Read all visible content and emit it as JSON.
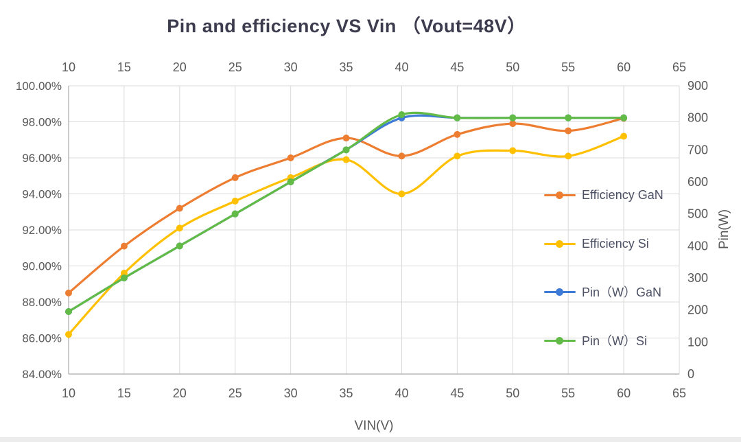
{
  "title": "Pin and efficiency VS Vin （Vout=48V）",
  "chart_data": {
    "type": "line",
    "title": "Pin and efficiency VS Vin （Vout=48V）",
    "x": [
      10,
      15,
      20,
      25,
      30,
      35,
      40,
      45,
      50,
      55,
      60
    ],
    "x_axis": {
      "label": "VIN(V)",
      "range": [
        10,
        65
      ],
      "ticks": [
        10,
        15,
        20,
        25,
        30,
        35,
        40,
        45,
        50,
        55,
        60,
        65
      ],
      "tick_labels_shown": "top and bottom"
    },
    "y_axis_left": {
      "label": "",
      "unit": "percent",
      "range": [
        84,
        100
      ],
      "ticks": [
        "100.00%",
        "98.00%",
        "96.00%",
        "94.00%",
        "92.00%",
        "90.00%",
        "88.00%",
        "86.00%",
        "84.00%"
      ]
    },
    "y_axis_right": {
      "label": "Pin(W)",
      "range": [
        0,
        900
      ],
      "ticks": [
        900,
        800,
        700,
        600,
        500,
        400,
        300,
        200,
        100,
        0
      ]
    },
    "grid": true,
    "legend_position": "inside-right",
    "series": [
      {
        "name": "Efficiency GaN",
        "axis": "left",
        "color": "#ED7D31",
        "marker": "circle",
        "values": [
          88.5,
          91.1,
          93.2,
          94.9,
          96.0,
          97.1,
          96.1,
          97.3,
          97.9,
          97.5,
          98.2
        ]
      },
      {
        "name": "Efficiency Si",
        "axis": "left",
        "color": "#FFC000",
        "marker": "circle",
        "values": [
          86.2,
          89.6,
          92.1,
          93.6,
          94.9,
          95.9,
          94.0,
          96.1,
          96.4,
          96.1,
          97.2
        ]
      },
      {
        "name": "Pin（W）GaN",
        "axis": "right",
        "color": "#3E7BD6",
        "marker": "circle",
        "values": [
          195,
          300,
          400,
          500,
          600,
          700,
          800,
          800,
          800,
          800,
          800
        ]
      },
      {
        "name": "Pin（W）Si",
        "axis": "right",
        "color": "#62BB46",
        "marker": "circle",
        "values": [
          195,
          300,
          400,
          500,
          600,
          700,
          810,
          800,
          800,
          800,
          800
        ]
      }
    ]
  },
  "legend_rows_top": [
    273,
    344,
    414,
    485
  ]
}
